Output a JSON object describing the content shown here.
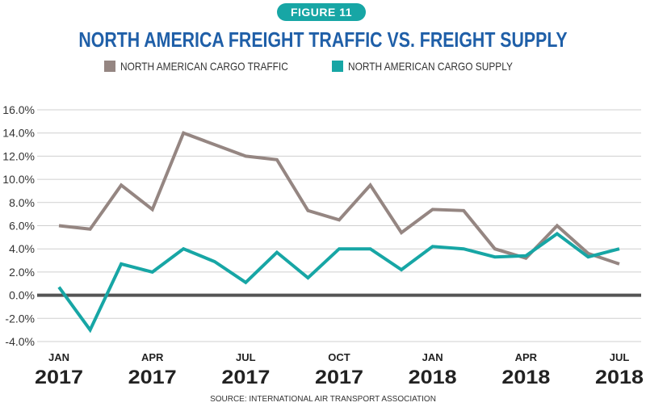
{
  "figure_badge": "FIGURE 11",
  "title": "NORTH AMERICA FREIGHT TRAFFIC VS. FREIGHT SUPPLY",
  "source": "SOURCE: INTERNATIONAL AIR TRANSPORT ASSOCIATION",
  "colors": {
    "traffic": "#958682",
    "supply": "#17a6a5",
    "zero_line": "#555555",
    "grid": "#cfcfcf",
    "title": "#1f5fa8",
    "badge": "#17a6a5"
  },
  "chart_data": {
    "type": "line",
    "title": "NORTH AMERICA FREIGHT TRAFFIC VS. FREIGHT SUPPLY",
    "xlabel": "",
    "ylabel": "",
    "ylim": [
      -4.0,
      16.0
    ],
    "yticks": [
      "16.0%",
      "14.0%",
      "12.0%",
      "10.0%",
      "8.0%",
      "6.0%",
      "4.0%",
      "2.0%",
      "0.0%",
      "-2.0%",
      "-4.0%"
    ],
    "ytick_values": [
      16,
      14,
      12,
      10,
      8,
      6,
      4,
      2,
      0,
      -2,
      -4
    ],
    "x": [
      "JAN 2017",
      "FEB 2017",
      "MAR 2017",
      "APR 2017",
      "MAY 2017",
      "JUN 2017",
      "JUL 2017",
      "AUG 2017",
      "SEP 2017",
      "OCT 2017",
      "NOV 2017",
      "DEC 2017",
      "JAN 2018",
      "FEB 2018",
      "MAR 2018",
      "APR 2018",
      "MAY 2018",
      "JUN 2018",
      "JUL 2018"
    ],
    "xticks": [
      {
        "index": 0,
        "month": "JAN",
        "year": "2017"
      },
      {
        "index": 3,
        "month": "APR",
        "year": "2017"
      },
      {
        "index": 6,
        "month": "JUL",
        "year": "2017"
      },
      {
        "index": 9,
        "month": "OCT",
        "year": "2017"
      },
      {
        "index": 12,
        "month": "JAN",
        "year": "2018"
      },
      {
        "index": 15,
        "month": "APR",
        "year": "2018"
      },
      {
        "index": 18,
        "month": "JUL",
        "year": "2018"
      }
    ],
    "series": [
      {
        "name": "NORTH AMERICAN CARGO TRAFFIC",
        "color": "#958682",
        "values": [
          6.0,
          5.7,
          9.5,
          7.4,
          14.0,
          13.0,
          12.0,
          11.7,
          7.3,
          6.5,
          9.5,
          5.4,
          7.4,
          7.3,
          4.0,
          3.2,
          6.0,
          3.6,
          2.7
        ]
      },
      {
        "name": "NORTH AMERICAN CARGO SUPPLY",
        "color": "#17a6a5",
        "values": [
          0.7,
          -3.0,
          2.7,
          2.0,
          4.0,
          2.9,
          1.1,
          3.7,
          1.5,
          4.0,
          4.0,
          2.2,
          4.2,
          4.0,
          3.3,
          3.4,
          5.3,
          3.3,
          4.0
        ]
      }
    ],
    "grid": true,
    "legend": "top-center"
  }
}
